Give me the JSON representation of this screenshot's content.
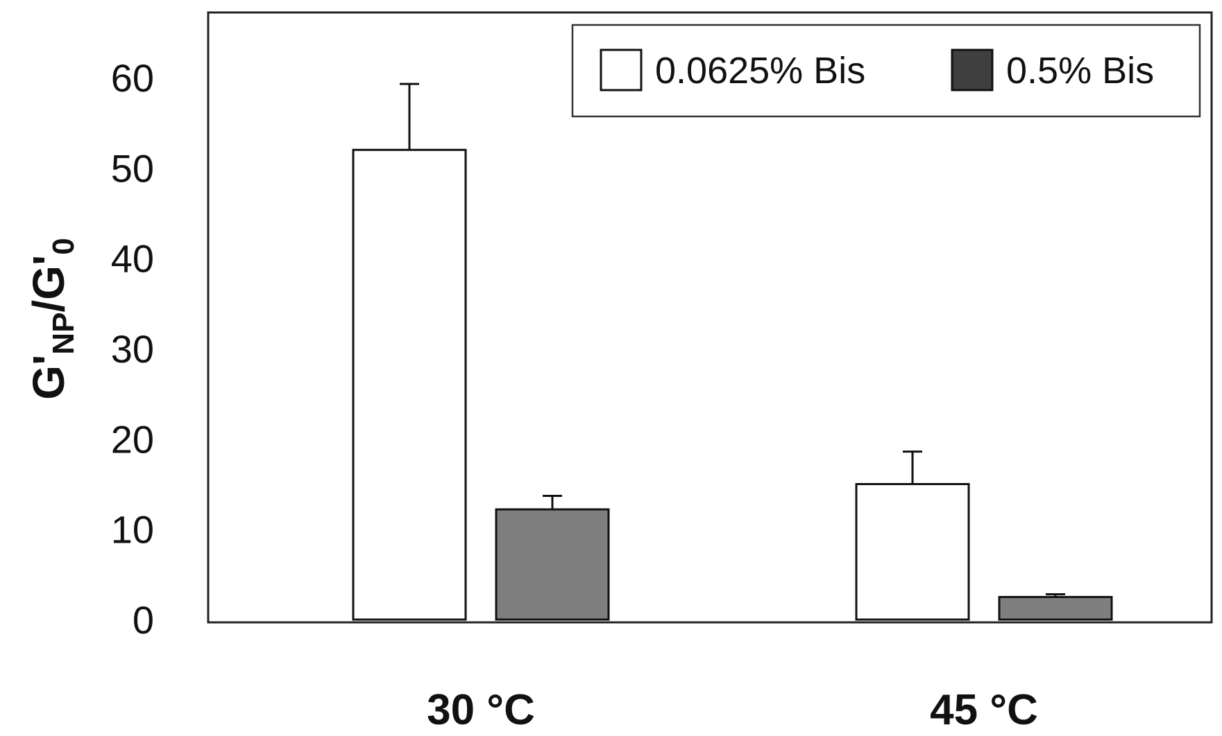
{
  "chart_data": {
    "type": "bar",
    "title": "",
    "xlabel": "",
    "ylabel": {
      "main": "G'",
      "main_sub": "NP",
      "sep": "/G'",
      "sep_sub": "0"
    },
    "categories": [
      "30 °C",
      "45 °C"
    ],
    "ylim": [
      0,
      65
    ],
    "yticks": [
      "0",
      "10",
      "20",
      "30",
      "40",
      "50",
      "60"
    ],
    "series": [
      {
        "name": "0.0625% Bis",
        "values": [
          52,
          15
        ],
        "error_plus": [
          7.3,
          3.6
        ],
        "fill": "#ffffff"
      },
      {
        "name": "0.5% Bis",
        "values": [
          12.2,
          2.5
        ],
        "error_plus": [
          1.5,
          0.3
        ],
        "fill": "#7f7f7f"
      }
    ],
    "legend": {
      "placement": "top-right",
      "swatch_colors": [
        "#ffffff",
        "#3f3f3f"
      ]
    },
    "grid": false
  }
}
